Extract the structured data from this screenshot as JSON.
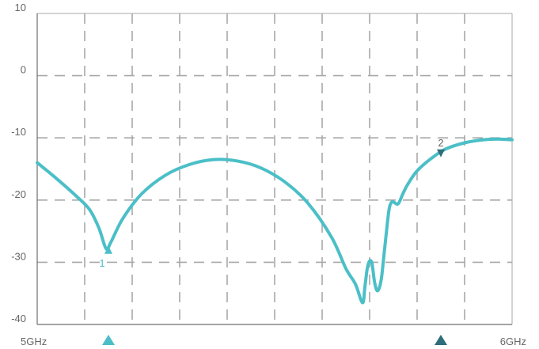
{
  "colors": {
    "trace": "#4BBFC7",
    "marker2": "#2E6E7A",
    "grid": "#a8a8a8",
    "axis": "#6e6e6e",
    "text": "#666666"
  },
  "chart_data": {
    "type": "line",
    "title": "",
    "xlabel": "",
    "ylabel": "",
    "xlim": [
      5.0,
      6.0
    ],
    "ylim": [
      -40,
      10
    ],
    "x_ticks": [
      {
        "x": 5.0,
        "label": "5GHz"
      },
      {
        "x": 6.0,
        "label": "6GHz"
      }
    ],
    "y_ticks": [
      {
        "y": 10,
        "label": "10"
      },
      {
        "y": 0,
        "label": "0"
      },
      {
        "y": -10,
        "label": "-10"
      },
      {
        "y": -20,
        "label": "-20"
      },
      {
        "y": -30,
        "label": "-30"
      },
      {
        "y": -40,
        "label": "-40"
      }
    ],
    "grid": true,
    "grid_divisions": {
      "x": 10,
      "y": 5
    },
    "series": [
      {
        "x": [
          5.0,
          5.04,
          5.08,
          5.11,
          5.13,
          5.145,
          5.155,
          5.18,
          5.22,
          5.27,
          5.32,
          5.37,
          5.42,
          5.47,
          5.52,
          5.57,
          5.62,
          5.65,
          5.67,
          5.685,
          5.69,
          5.695,
          5.7,
          5.705,
          5.71,
          5.715,
          5.72,
          5.725,
          5.73,
          5.74,
          5.745,
          5.75,
          5.76,
          5.77,
          5.78,
          5.8,
          5.83,
          5.86,
          5.9,
          5.94,
          5.97,
          6.0
        ],
        "y": [
          -14.0,
          -16.5,
          -19.2,
          -21.5,
          -24.5,
          -27.8,
          -26.8,
          -23.0,
          -19.0,
          -16.0,
          -14.3,
          -13.5,
          -13.7,
          -14.8,
          -17.0,
          -20.5,
          -26.0,
          -31.0,
          -33.5,
          -36.5,
          -34.0,
          -31.0,
          -29.8,
          -30.2,
          -33.0,
          -34.5,
          -34.2,
          -32.5,
          -29.0,
          -22.0,
          -20.5,
          -20.3,
          -20.6,
          -19.0,
          -17.5,
          -15.3,
          -13.3,
          -11.8,
          -10.8,
          -10.3,
          -10.2,
          -10.3
        ]
      }
    ],
    "markers": [
      {
        "label": "1",
        "x": 5.15,
        "y": -27.5,
        "direction": "up"
      },
      {
        "label": "2",
        "x": 5.85,
        "y": -13.0,
        "direction": "down"
      }
    ],
    "footer_markers": [
      {
        "x": 5.15,
        "name": "marker-1"
      },
      {
        "x": 5.85,
        "name": "marker-2"
      }
    ]
  }
}
